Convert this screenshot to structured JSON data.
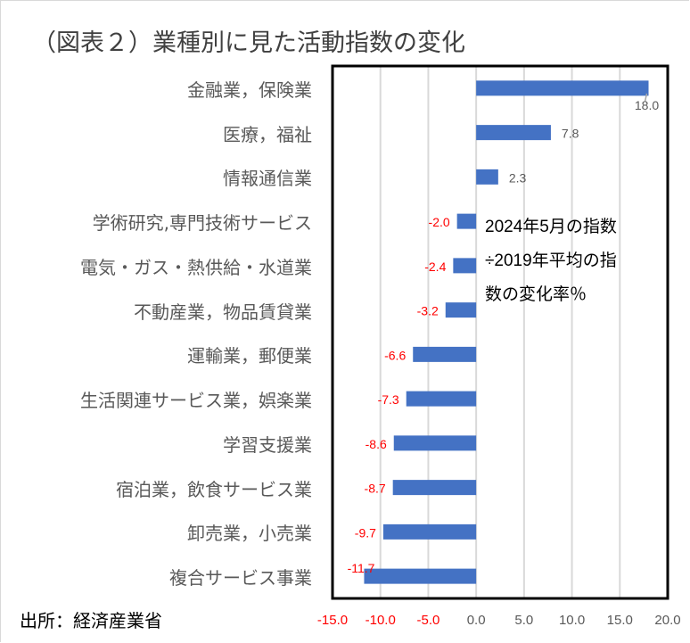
{
  "chart_data": {
    "type": "bar",
    "orientation": "horizontal",
    "title": "（図表２）業種別に見た活動指数の変化",
    "categories": [
      "金融業，保険業",
      "医療，福祉",
      "情報通信業",
      "学術研究,専門技術サービス",
      "電気・ガス・熱供給・水道業",
      "不動産業，物品賃貸業",
      "運輸業，郵便業",
      "生活関連サービス業，娯楽業",
      "学習支援業",
      "宿泊業，飲食サービス業",
      "卸売業，小売業",
      "複合サービス事業"
    ],
    "values": [
      18.0,
      7.8,
      2.3,
      -2.0,
      -2.4,
      -3.2,
      -6.6,
      -7.3,
      -8.6,
      -8.7,
      -9.7,
      -11.7
    ],
    "value_labels": [
      "18.0",
      "7.8",
      "2.3",
      "-2.0",
      "-2.4",
      "-3.2",
      "-6.6",
      "-7.3",
      "-8.6",
      "-8.7",
      "-9.7",
      "-11.7"
    ],
    "xlim": [
      -15,
      20
    ],
    "xticks": [
      -15,
      -10,
      -5,
      0,
      5,
      10,
      15,
      20
    ],
    "xtick_labels": [
      "-15.0",
      "-10.0",
      "-5.0",
      "0.0",
      "5.0",
      "10.0",
      "15.0",
      "20.0"
    ],
    "grid": true,
    "legend": null,
    "annotation": [
      "2024年5月の指数",
      "÷2019年平均の指",
      "数の変化率％"
    ],
    "source": "出所：経済産業省",
    "colors": {
      "bar": "#4472c4",
      "negative_label": "#ff0000",
      "positive_label": "#595959",
      "grid": "#d9d9d9"
    }
  }
}
